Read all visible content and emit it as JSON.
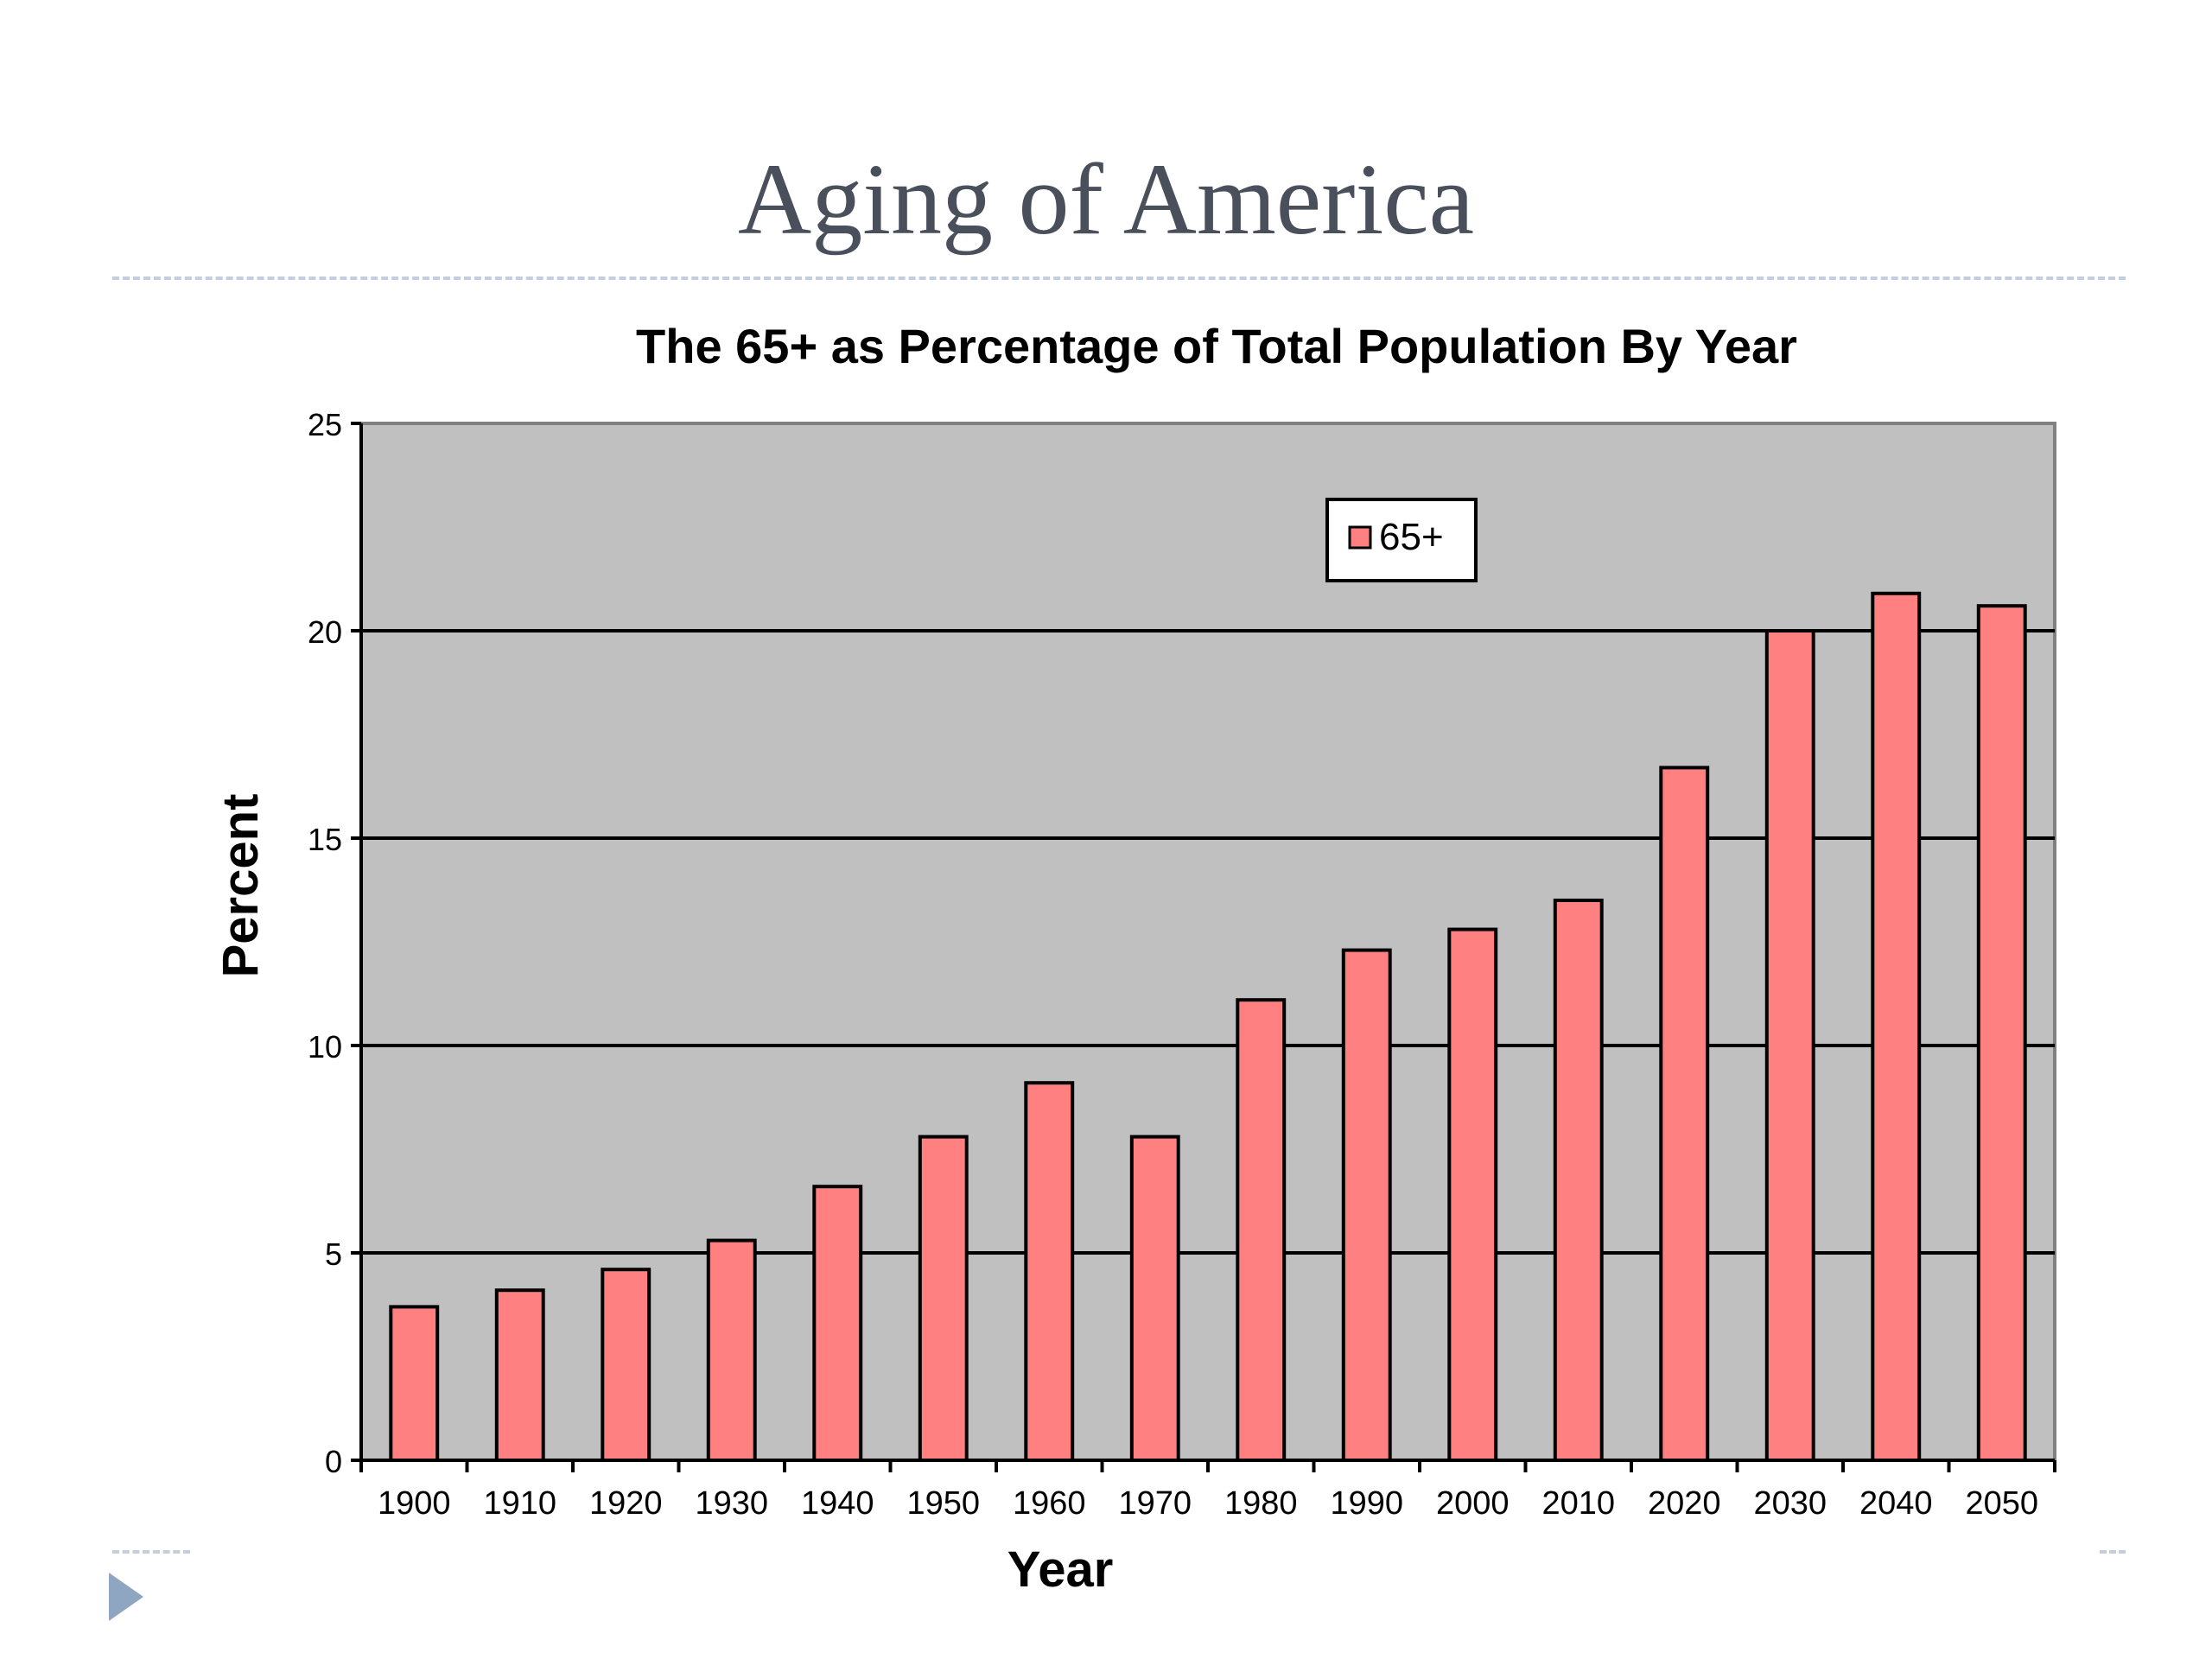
{
  "slide": {
    "title": "Aging of America"
  },
  "chart_data": {
    "type": "bar",
    "title": "The 65+ as Percentage of Total Population By Year",
    "xlabel": "Year",
    "ylabel": "Percent",
    "categories": [
      "1900",
      "1910",
      "1920",
      "1930",
      "1940",
      "1950",
      "1960",
      "1970",
      "1980",
      "1990",
      "2000",
      "2010",
      "2020",
      "2030",
      "2040",
      "2050"
    ],
    "series": [
      {
        "name": "65+",
        "values": [
          3.7,
          4.1,
          4.6,
          5.3,
          6.6,
          7.8,
          9.1,
          7.8,
          11.1,
          12.3,
          12.8,
          13.5,
          16.7,
          20.0,
          20.9,
          20.6
        ]
      }
    ],
    "ylim": [
      0,
      25
    ],
    "yticks": [
      0,
      5,
      10,
      15,
      20,
      25
    ],
    "grid": true,
    "legend": "top-center",
    "colors": {
      "bar": "#ff8080",
      "plot_bg": "#c0c0c0",
      "grid": "#000000"
    }
  }
}
